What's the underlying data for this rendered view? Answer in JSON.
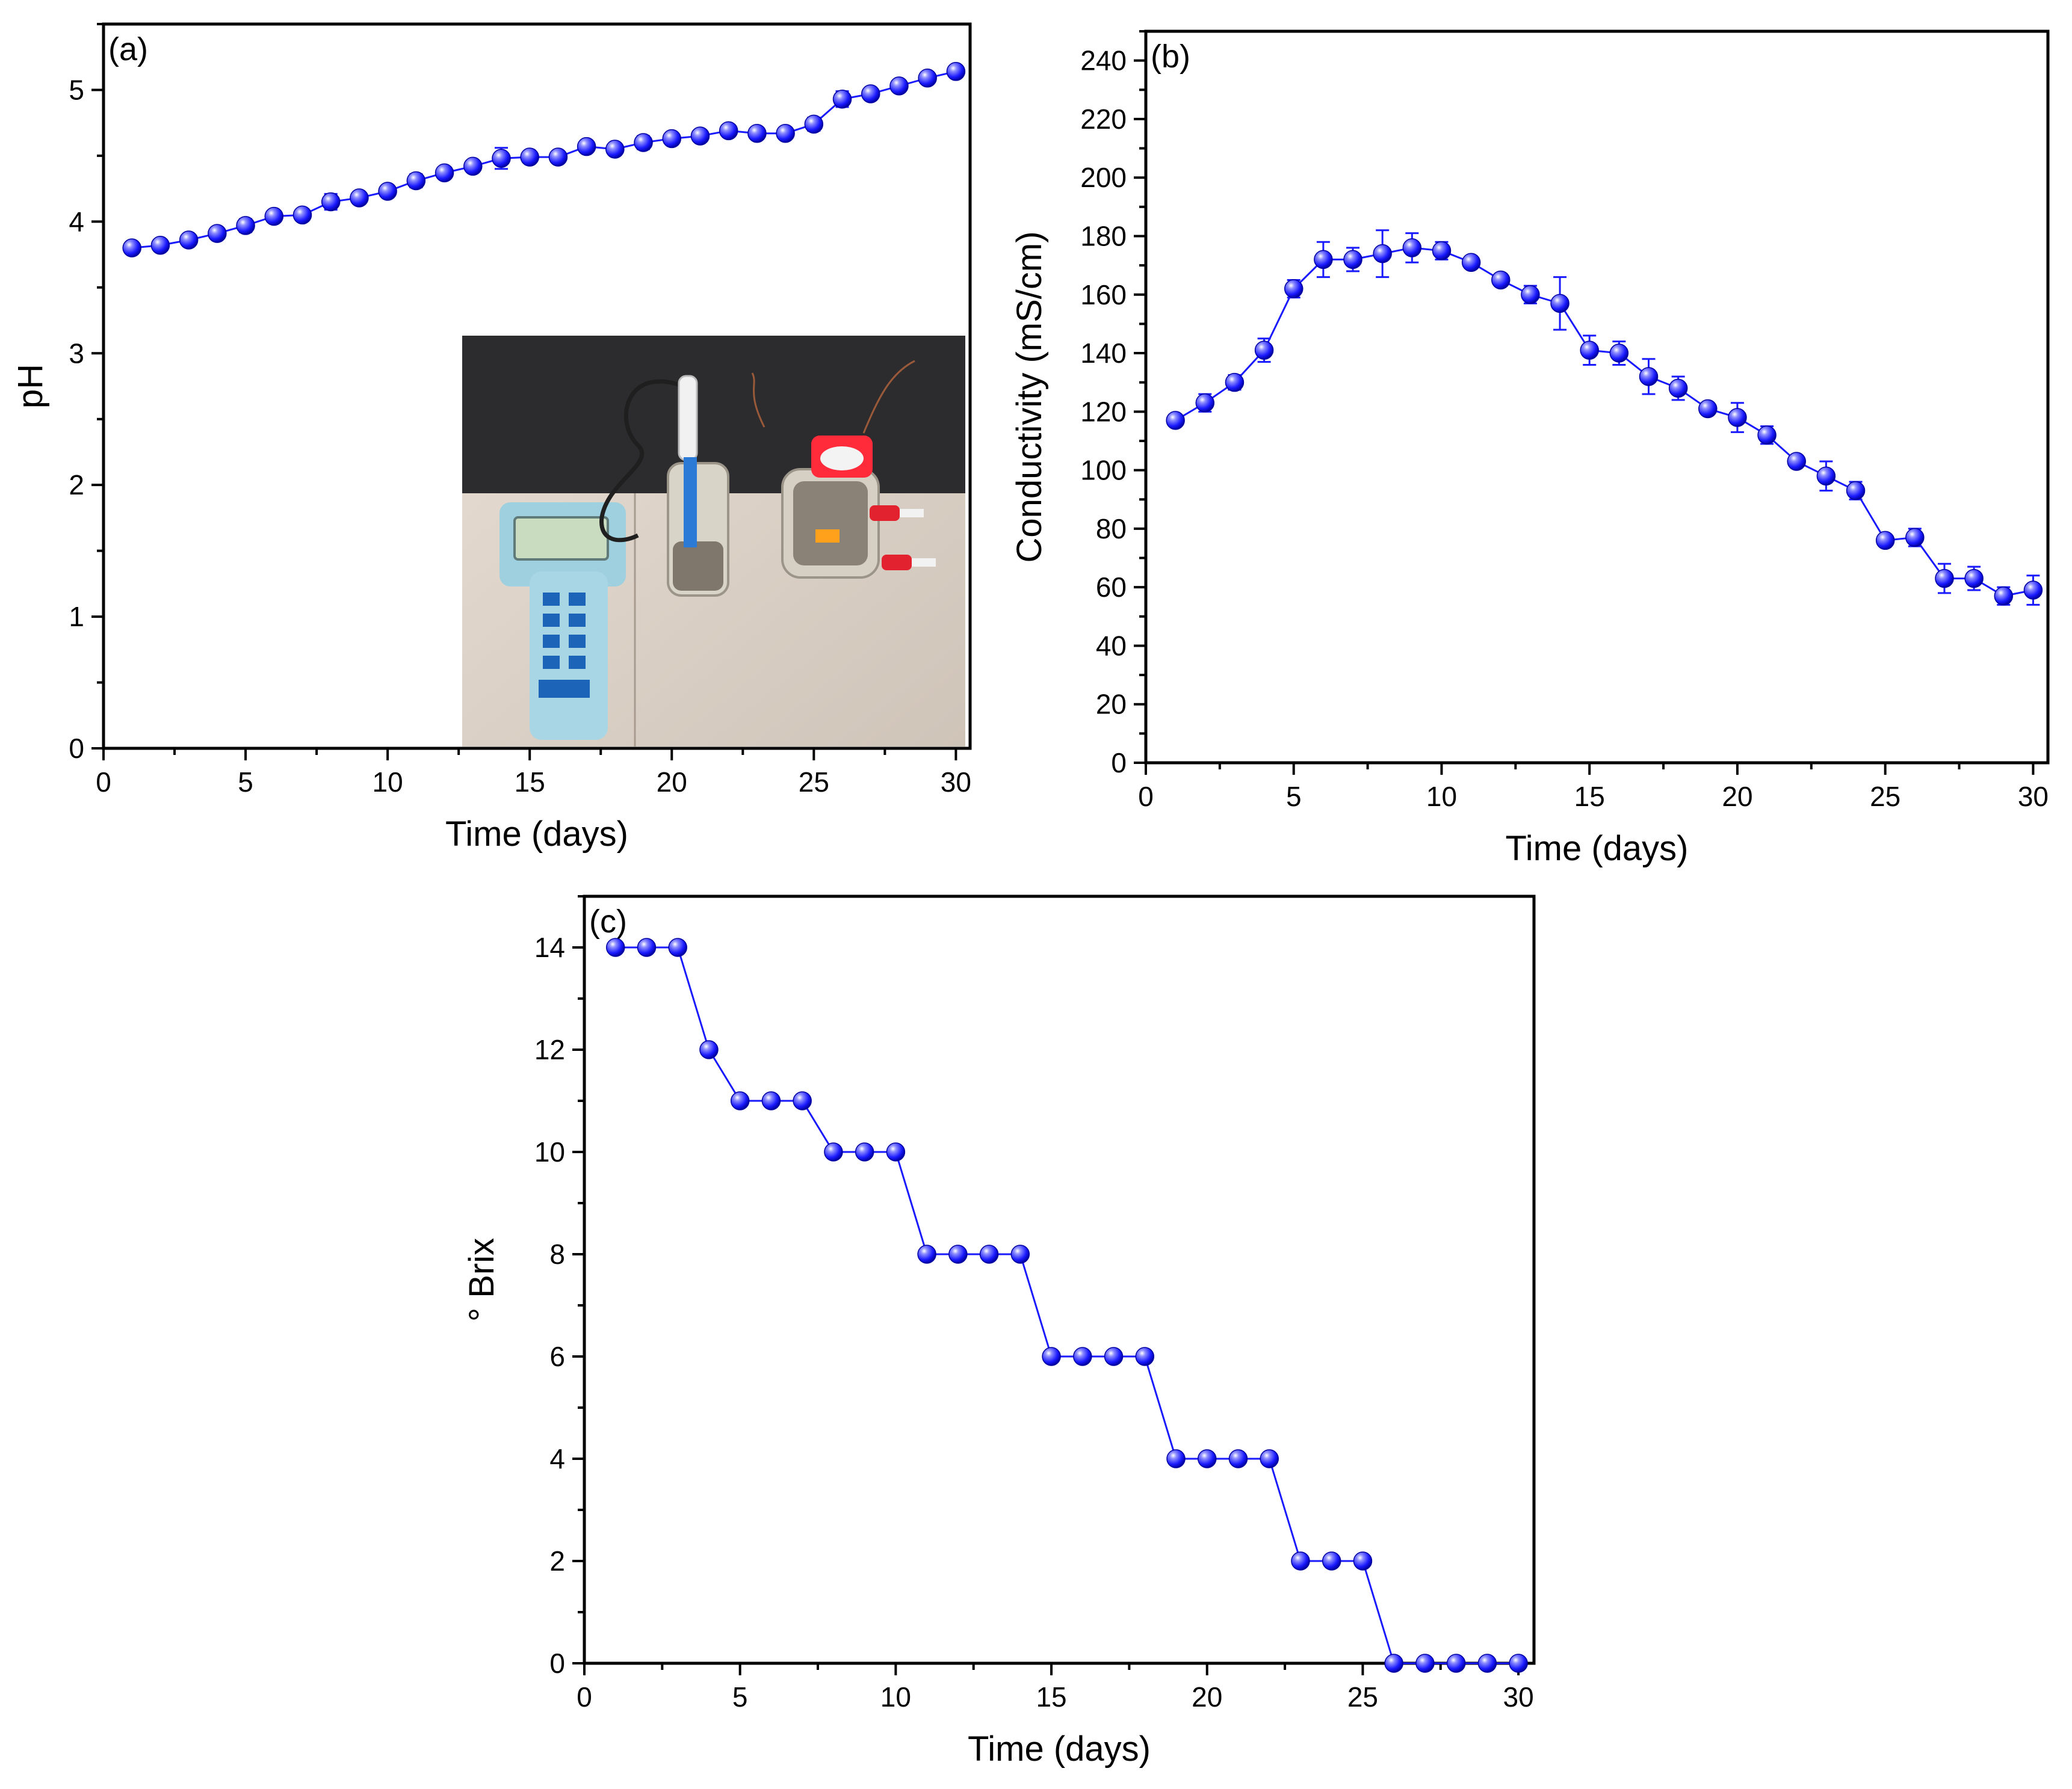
{
  "colors": {
    "series": "#1a1aff",
    "marker_dark": "#0000b3",
    "marker_light": "#8f8fff"
  },
  "chart_data": [
    {
      "panel": "a",
      "type": "line",
      "panel_label": "(a)",
      "xlabel": "Time (days)",
      "ylabel": "pH",
      "xlim": [
        0,
        30.5
      ],
      "ylim": [
        0,
        5.5
      ],
      "xticks": [
        0,
        5,
        10,
        15,
        20,
        25,
        30
      ],
      "yticks": [
        0,
        1,
        2,
        3,
        4,
        5
      ],
      "inset": "photo of a pH meter and sample jars",
      "series": [
        {
          "x": [
            1,
            2,
            3,
            4,
            5,
            6,
            7,
            8,
            9,
            10,
            11,
            12,
            13,
            14,
            15,
            16,
            17,
            18,
            19,
            20,
            21,
            22,
            23,
            24,
            25,
            26,
            27,
            28,
            29,
            30
          ],
          "y": [
            3.8,
            3.82,
            3.86,
            3.91,
            3.97,
            4.04,
            4.05,
            4.15,
            4.18,
            4.23,
            4.31,
            4.37,
            4.42,
            4.48,
            4.49,
            4.49,
            4.57,
            4.55,
            4.6,
            4.63,
            4.65,
            4.69,
            4.67,
            4.67,
            4.74,
            4.93,
            4.97,
            5.03,
            5.09,
            5.14
          ],
          "err": [
            0.02,
            0.02,
            0.02,
            0.04,
            0.05,
            0.03,
            0.03,
            0.06,
            0.03,
            0.03,
            0.05,
            0.03,
            0.03,
            0.08,
            0.04,
            0.04,
            0.03,
            0.03,
            0.05,
            0.04,
            0.03,
            0.03,
            0.03,
            0.03,
            0.05,
            0.06,
            0.03,
            0.03,
            0.03,
            0.03
          ]
        }
      ]
    },
    {
      "panel": "b",
      "type": "line",
      "panel_label": "(b)",
      "xlabel": "Time (days)",
      "ylabel": "Conductivity (mS/cm)",
      "xlim": [
        0,
        30.5
      ],
      "ylim": [
        0,
        250
      ],
      "xticks": [
        0,
        5,
        10,
        15,
        20,
        25,
        30
      ],
      "yticks": [
        0,
        20,
        40,
        60,
        80,
        100,
        120,
        140,
        160,
        180,
        200,
        220,
        240
      ],
      "series": [
        {
          "x": [
            1,
            2,
            3,
            4,
            5,
            6,
            7,
            8,
            9,
            10,
            11,
            12,
            13,
            14,
            15,
            16,
            17,
            18,
            19,
            20,
            21,
            22,
            23,
            24,
            25,
            26,
            27,
            28,
            29,
            30
          ],
          "y": [
            117,
            123,
            130,
            141,
            162,
            172,
            172,
            174,
            176,
            175,
            171,
            165,
            160,
            157,
            141,
            140,
            132,
            128,
            121,
            118,
            112,
            103,
            98,
            93,
            76,
            77,
            63,
            63,
            57,
            59
          ],
          "err": [
            1.5,
            3,
            2.5,
            4,
            3,
            6,
            4,
            8,
            5,
            3,
            2,
            2,
            3,
            9,
            5,
            4,
            6,
            4,
            2,
            5,
            3,
            2,
            5,
            3,
            2,
            3,
            5,
            4,
            3,
            5
          ]
        }
      ]
    },
    {
      "panel": "c",
      "type": "line",
      "panel_label": "(c)",
      "xlabel": "Time (days)",
      "ylabel": "° Brix",
      "xlim": [
        0,
        30.5
      ],
      "ylim": [
        0,
        15
      ],
      "xticks": [
        0,
        5,
        10,
        15,
        20,
        25,
        30
      ],
      "yticks": [
        0,
        2,
        4,
        6,
        8,
        10,
        12,
        14
      ],
      "series": [
        {
          "x": [
            1,
            2,
            3,
            4,
            5,
            6,
            7,
            8,
            9,
            10,
            11,
            12,
            13,
            14,
            15,
            16,
            17,
            18,
            19,
            20,
            21,
            22,
            23,
            24,
            25,
            26,
            27,
            28,
            29,
            30
          ],
          "y": [
            14,
            14,
            14,
            12,
            11,
            11,
            11,
            10,
            10,
            10,
            8,
            8,
            8,
            8,
            6,
            6,
            6,
            6,
            4,
            4,
            4,
            4,
            2,
            2,
            2,
            0,
            0,
            0,
            0,
            0
          ]
        }
      ]
    }
  ]
}
